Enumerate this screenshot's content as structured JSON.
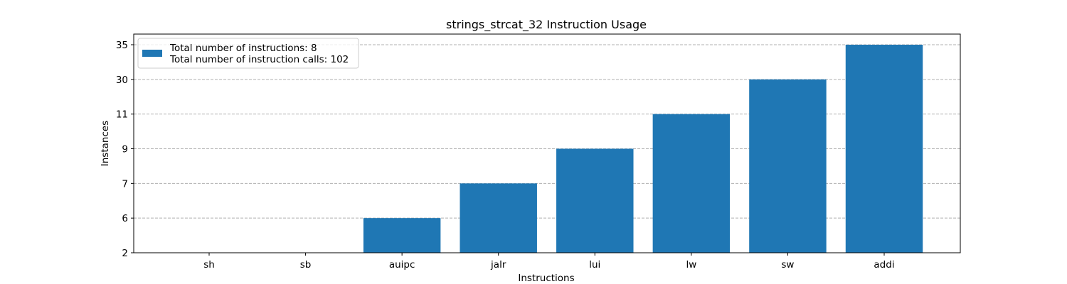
{
  "chart_data": {
    "type": "bar",
    "title": "strings_strcat_32 Instruction Usage",
    "xlabel": "Instructions",
    "ylabel": "Instances",
    "categories": [
      "sh",
      "sb",
      "auipc",
      "jalr",
      "lui",
      "lw",
      "sw",
      "addi"
    ],
    "values": [
      2,
      2,
      6,
      7,
      9,
      11,
      30,
      35
    ],
    "y_ticks": [
      "2",
      "6",
      "7",
      "9",
      "11",
      "30",
      "35"
    ],
    "y_axis_scale": "categorical",
    "grid": "horizontal dashed",
    "legend": {
      "placement": "top-left",
      "lines": [
        "Total number of instructions: 8",
        "Total number of instruction calls: 102"
      ]
    },
    "bar_color": "#1f77b4"
  }
}
